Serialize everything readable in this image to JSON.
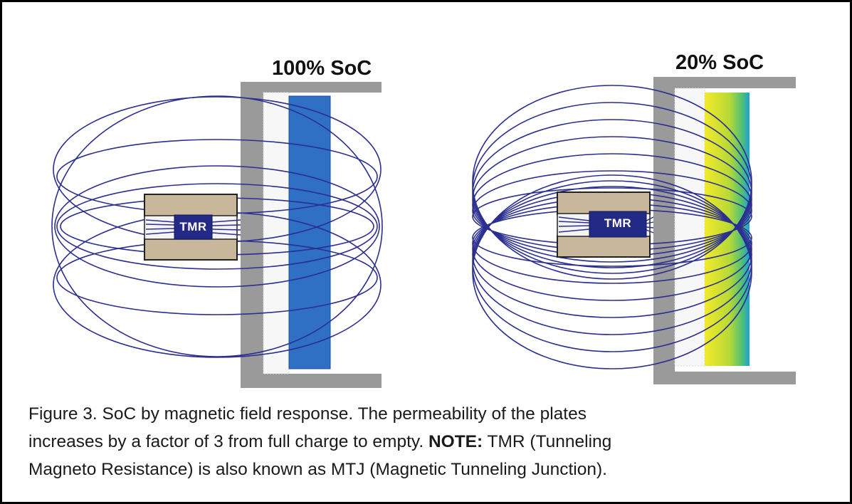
{
  "figure": {
    "left_panel": {
      "label": "100% SoC",
      "sensor_label": "TMR"
    },
    "right_panel": {
      "label": "20% SoC",
      "sensor_label": "TMR"
    },
    "caption": {
      "line1": "Figure 3. SoC by magnetic field response. The permeability of the plates",
      "line2_pre": "increases by a factor of 3 from full charge to empty.",
      "line2_bold": "NOTE:",
      "line2_post": "TMR (Tunneling",
      "line3": "Magneto Resistance) is also known as MTJ (Magnetic Tunneling Junction)."
    },
    "colors": {
      "field_lines": "#2b2f8f",
      "sensor": "#232a86",
      "core": "#c9b79c",
      "housing": "#9a9a9a",
      "full_charge_plate": "#2f6fc4",
      "low_charge_plate_gradient": [
        "#f2ea2a",
        "#9fd43a",
        "#1f9fd8"
      ]
    }
  }
}
